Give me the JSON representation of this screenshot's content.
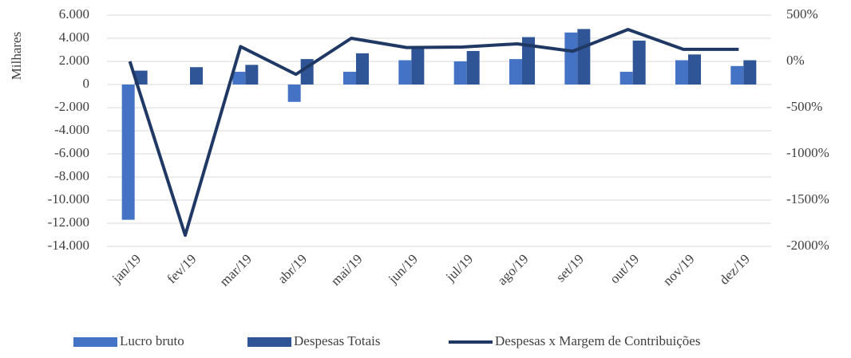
{
  "chart_data": {
    "type": "bar-line",
    "y_label": "Milhares",
    "categories": [
      "jan/19",
      "fev/19",
      "mar/19",
      "abr/19",
      "mai/19",
      "jun/19",
      "jul/19",
      "ago/19",
      "set/19",
      "out/19",
      "nov/19",
      "dez/19"
    ],
    "series": [
      {
        "name": "Lucro bruto",
        "type": "bar",
        "color": "#4472c4",
        "values": [
          -11700,
          0,
          1100,
          -1500,
          1100,
          2100,
          2000,
          2200,
          4500,
          1100,
          2100,
          1600
        ]
      },
      {
        "name": "Despesas Totais",
        "type": "bar",
        "color": "#2f5597",
        "values": [
          1200,
          1500,
          1700,
          2200,
          2700,
          3200,
          2900,
          4100,
          4800,
          3800,
          2600,
          2100
        ]
      },
      {
        "name": "Despesas x Margem de Contribuições",
        "type": "line",
        "axis": "y2",
        "color": "#203864",
        "values": [
          0,
          -1880,
          160,
          -140,
          250,
          150,
          155,
          190,
          110,
          345,
          130,
          130
        ]
      }
    ],
    "ylim": [
      -14000,
      6000
    ],
    "yticks": [
      {
        "value": 6000,
        "label": "6.000"
      },
      {
        "value": 4000,
        "label": "4.000"
      },
      {
        "value": 2000,
        "label": "2.000"
      },
      0,
      {
        "value": -2000,
        "label": "-2.000"
      },
      {
        "value": -4000,
        "label": "-4.000"
      },
      {
        "value": -6000,
        "label": "-6.000"
      },
      {
        "value": -8000,
        "label": "-8.000"
      },
      {
        "value": -10000,
        "label": "-10.000"
      },
      {
        "value": -12000,
        "label": "-12.000"
      },
      {
        "value": -14000,
        "label": "-14.000"
      }
    ],
    "y2lim": [
      -2000,
      500
    ],
    "y2ticks": [
      {
        "value": 500,
        "label": "500%"
      },
      {
        "value": 0,
        "label": "0%"
      },
      {
        "value": -500,
        "label": "-500%"
      },
      {
        "value": -1000,
        "label": "-1000%"
      },
      {
        "value": -1500,
        "label": "-1500%"
      },
      {
        "value": -2000,
        "label": "-2000%"
      }
    ],
    "grid": true,
    "legend": "bottom"
  }
}
